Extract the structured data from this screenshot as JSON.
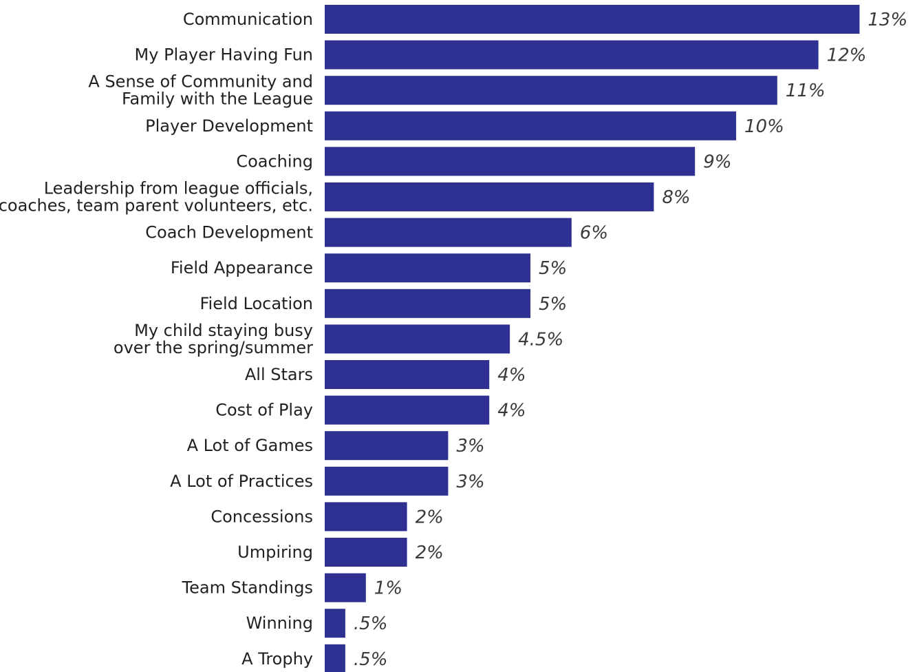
{
  "chart_data": {
    "type": "bar",
    "orientation": "horizontal",
    "color": "#2e3192",
    "categories": [
      [
        "Communication"
      ],
      [
        "My Player Having Fun"
      ],
      [
        "A Sense of Community and",
        "Family with the League"
      ],
      [
        "Player Development"
      ],
      [
        "Coaching"
      ],
      [
        "Leadership from league officials,",
        "coaches, team parent volunteers, etc."
      ],
      [
        "Coach Development"
      ],
      [
        "Field Appearance"
      ],
      [
        "Field Location"
      ],
      [
        "My child staying busy",
        "over the spring/summer"
      ],
      [
        "All Stars"
      ],
      [
        "Cost of Play"
      ],
      [
        "A Lot of Games"
      ],
      [
        "A Lot of Practices"
      ],
      [
        "Concessions"
      ],
      [
        "Umpiring"
      ],
      [
        "Team Standings"
      ],
      [
        "Winning"
      ],
      [
        "A Trophy"
      ]
    ],
    "values": [
      13,
      12,
      11,
      10,
      9,
      8,
      6,
      5,
      5,
      4.5,
      4,
      4,
      3,
      3,
      2,
      2,
      1,
      0.5,
      0.5
    ],
    "value_labels": [
      "13%",
      "12%",
      "11%",
      "10%",
      "9%",
      "8%",
      "6%",
      "5%",
      "5%",
      "4.5%",
      "4%",
      "4%",
      "3%",
      "3%",
      "2%",
      "2%",
      "1%",
      ".5%",
      ".5%"
    ],
    "title": "",
    "xlabel": "",
    "ylabel": "",
    "grid": false,
    "legend": "none"
  }
}
